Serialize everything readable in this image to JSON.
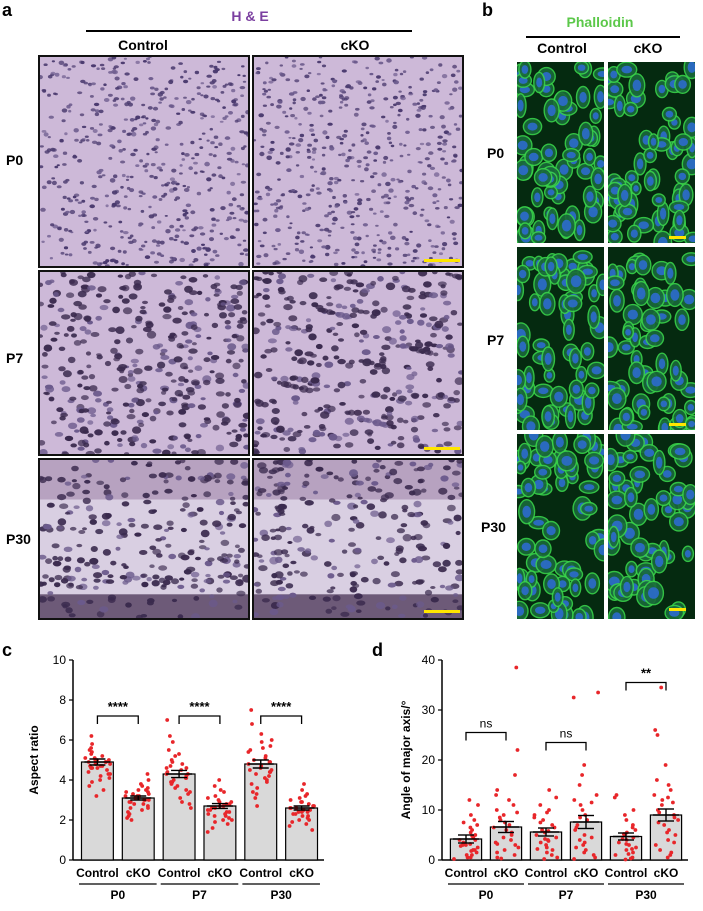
{
  "panels": {
    "a": {
      "letter": "a",
      "stain": "H & E",
      "columns": [
        "Control",
        "cKO"
      ],
      "rows": [
        "P0",
        "P7",
        "P30"
      ]
    },
    "b": {
      "letter": "b",
      "stain": "Phalloidin",
      "columns": [
        "Control",
        "cKO"
      ],
      "rows": [
        "P0",
        "P7",
        "P30"
      ]
    },
    "c": {
      "letter": "c"
    },
    "d": {
      "letter": "d"
    }
  },
  "colors": {
    "he_stain_label": "#7b3fa0",
    "phalloidin_label": "#5cc84a",
    "bar_fill": "#d9d9d9",
    "dot": "#e8262a",
    "scale_bar": "#ffe600"
  },
  "chart_data": [
    {
      "type": "bar",
      "title": "",
      "ylabel": "Aspect ratio",
      "xlabel": "",
      "ylim": [
        0,
        10
      ],
      "yticks": [
        0,
        2,
        4,
        6,
        8,
        10
      ],
      "categories": [
        "Control",
        "cKO",
        "Control",
        "cKO",
        "Control",
        "cKO"
      ],
      "groups": [
        "P0",
        "P7",
        "P30"
      ],
      "values": [
        4.9,
        3.1,
        4.3,
        2.7,
        4.8,
        2.6
      ],
      "sem": [
        0.15,
        0.1,
        0.18,
        0.12,
        0.2,
        0.1
      ],
      "points": [
        [
          6.2,
          5.6,
          5.3,
          5.2,
          5.1,
          5.0,
          5.0,
          4.9,
          4.9,
          4.8,
          4.8,
          4.7,
          4.7,
          4.6,
          4.6,
          4.5,
          4.4,
          4.3,
          4.2,
          4.1,
          4.0,
          3.9,
          3.7,
          3.5,
          5.4,
          5.5,
          4.9,
          5.1,
          4.8,
          4.6,
          4.3,
          5.8,
          3.2,
          5.0,
          4.7
        ],
        [
          4.3,
          4.0,
          3.8,
          3.6,
          3.5,
          3.4,
          3.3,
          3.2,
          3.2,
          3.1,
          3.1,
          3.0,
          3.0,
          2.9,
          2.9,
          2.8,
          2.7,
          2.6,
          2.5,
          2.4,
          2.3,
          2.1,
          2.0,
          3.5,
          3.2,
          2.8,
          3.7,
          2.6,
          3.0,
          3.4,
          2.2,
          3.3
        ],
        [
          7.0,
          6.2,
          5.9,
          5.5,
          5.2,
          5.0,
          4.8,
          4.7,
          4.5,
          4.4,
          4.3,
          4.2,
          4.1,
          4.0,
          3.9,
          3.8,
          3.7,
          3.6,
          3.5,
          3.3,
          3.1,
          2.8,
          2.6,
          4.9,
          4.6,
          3.9,
          4.3,
          5.3,
          3.4,
          4.1,
          4.6,
          2.9
        ],
        [
          4.0,
          3.7,
          3.4,
          3.2,
          3.0,
          2.9,
          2.8,
          2.7,
          2.7,
          2.6,
          2.6,
          2.5,
          2.5,
          2.4,
          2.4,
          2.3,
          2.2,
          2.1,
          2.0,
          1.9,
          1.8,
          1.6,
          1.4,
          3.1,
          2.8,
          2.2,
          2.9,
          2.3,
          3.5,
          2.0
        ],
        [
          7.5,
          6.8,
          6.3,
          5.9,
          5.6,
          5.4,
          5.2,
          5.0,
          4.9,
          4.8,
          4.7,
          4.6,
          4.5,
          4.4,
          4.3,
          4.2,
          4.1,
          4.0,
          3.8,
          3.6,
          3.4,
          3.1,
          2.7,
          5.5,
          5.1,
          4.5,
          4.9,
          3.9,
          6.0,
          4.4,
          5.7,
          3.3
        ],
        [
          3.8,
          3.5,
          3.3,
          3.1,
          3.0,
          2.9,
          2.8,
          2.7,
          2.6,
          2.6,
          2.5,
          2.5,
          2.4,
          2.4,
          2.3,
          2.3,
          2.2,
          2.1,
          2.0,
          1.9,
          1.8,
          1.7,
          1.5,
          2.9,
          2.6,
          2.2,
          3.2,
          2.7,
          2.0,
          2.4
        ]
      ],
      "significance": [
        {
          "group": "P0",
          "label": "****",
          "y": 7.2
        },
        {
          "group": "P7",
          "label": "****",
          "y": 7.2
        },
        {
          "group": "P30",
          "label": "****",
          "y": 7.2
        }
      ]
    },
    {
      "type": "bar",
      "title": "",
      "ylabel": "Angle of major axis/°",
      "xlabel": "",
      "ylim": [
        0,
        40
      ],
      "yticks": [
        0,
        10,
        20,
        30,
        40
      ],
      "categories": [
        "Control",
        "cKO",
        "Control",
        "cKO",
        "Control",
        "cKO"
      ],
      "groups": [
        "P0",
        "P7",
        "P30"
      ],
      "values": [
        4.2,
        6.6,
        5.6,
        7.6,
        4.7,
        9.0
      ],
      "sem": [
        0.8,
        1.1,
        0.8,
        1.3,
        0.7,
        1.2
      ],
      "points": [
        [
          12.0,
          11.0,
          9.0,
          8.0,
          7.5,
          7.0,
          6.0,
          5.5,
          5.0,
          4.5,
          4.0,
          4.0,
          3.5,
          3.0,
          3.0,
          2.5,
          2.0,
          2.0,
          1.5,
          1.0,
          1.0,
          0.5,
          0.5,
          0.2,
          3.2,
          4.8,
          6.5,
          2.8,
          1.8
        ],
        [
          38.5,
          22.0,
          17.0,
          14.0,
          13.0,
          12.0,
          11.0,
          10.0,
          9.0,
          8.0,
          7.5,
          7.0,
          6.5,
          6.0,
          5.0,
          4.5,
          4.0,
          3.5,
          3.0,
          2.0,
          1.5,
          1.0,
          0.5,
          0.3,
          5.5,
          8.5,
          2.5,
          9.5,
          3.2
        ],
        [
          14.0,
          12.5,
          11.0,
          10.0,
          9.0,
          8.5,
          8.0,
          7.0,
          6.5,
          6.0,
          5.5,
          5.0,
          4.5,
          4.0,
          3.5,
          3.0,
          2.5,
          2.0,
          1.5,
          1.0,
          0.5,
          0.2,
          5.8,
          7.5,
          3.8,
          9.5,
          2.2,
          4.2
        ],
        [
          33.5,
          32.5,
          19.0,
          17.0,
          15.0,
          13.0,
          12.0,
          11.0,
          10.0,
          9.0,
          8.0,
          7.0,
          6.0,
          5.0,
          4.5,
          4.0,
          3.0,
          2.0,
          1.5,
          1.0,
          0.5,
          0.2,
          6.5,
          8.5,
          3.5,
          11.5,
          2.5
        ],
        [
          13.0,
          12.5,
          10.0,
          9.0,
          8.0,
          7.0,
          6.0,
          5.5,
          5.0,
          4.5,
          4.0,
          3.5,
          3.0,
          2.5,
          2.0,
          1.5,
          1.0,
          0.5,
          0.3,
          0.1,
          4.2,
          6.5,
          3.2,
          2.2,
          5.2,
          1.2
        ],
        [
          34.5,
          26.0,
          25.0,
          19.0,
          16.0,
          15.0,
          14.0,
          13.0,
          12.0,
          11.0,
          10.0,
          9.0,
          8.5,
          8.0,
          7.0,
          6.0,
          5.0,
          4.0,
          3.0,
          2.0,
          1.5,
          1.0,
          0.5,
          9.5,
          11.5,
          7.5,
          5.5,
          3.5,
          12.5
        ]
      ],
      "significance": [
        {
          "group": "P0",
          "label": "ns",
          "y": 25.5
        },
        {
          "group": "P7",
          "label": "ns",
          "y": 23.5
        },
        {
          "group": "P30",
          "label": "**",
          "y": 35.5
        }
      ]
    }
  ]
}
